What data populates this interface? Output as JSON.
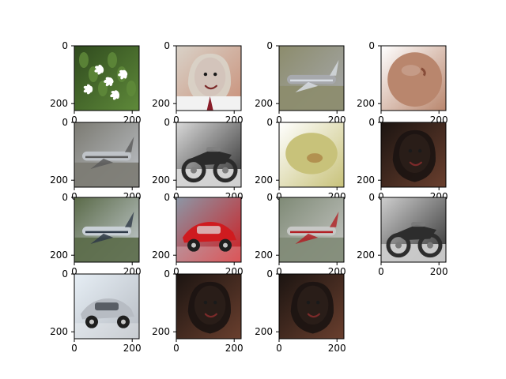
{
  "figure": {
    "background": "#ffffff",
    "axis_color": "#000000"
  },
  "chart_data": {
    "type": "image-grid",
    "rows": 4,
    "cols": 4,
    "axis": {
      "xticks": [
        0,
        200
      ],
      "yticks": [
        0,
        200
      ],
      "xlim": [
        0,
        224
      ],
      "ylim": [
        224,
        0
      ]
    },
    "panels": [
      {
        "subject": "white flowers and green leaves",
        "palette": {
          "bg": "#2f4a1e",
          "mid": "#5f8a3a",
          "accent": "#ffffff"
        }
      },
      {
        "subject": "man in white shirt and dark red tie",
        "palette": {
          "bg": "#d9d2c8",
          "mid": "#c98f78",
          "accent": "#8a1e2a"
        }
      },
      {
        "subject": "airliner on runway",
        "palette": {
          "bg": "#8c8c6c",
          "mid": "#a7a9ad",
          "accent": "#d8dde4"
        }
      },
      {
        "subject": "apple close-up",
        "palette": {
          "bg": "#ffffff",
          "mid": "#b9866d",
          "accent": "#7a3d2b"
        }
      },
      {
        "subject": "aircraft close-up on tarmac",
        "palette": {
          "bg": "#7b7a72",
          "mid": "#bfc3c8",
          "accent": "#5a5a5a"
        }
      },
      {
        "subject": "black motorcycle",
        "palette": {
          "bg": "#d9d9d9",
          "mid": "#2b2b2b",
          "accent": "#7f7f7f"
        }
      },
      {
        "subject": "melon slice close-up",
        "palette": {
          "bg": "#ffffff",
          "mid": "#c8c27a",
          "accent": "#a06a2e"
        }
      },
      {
        "subject": "smiling woman with curly hair",
        "palette": {
          "bg": "#1b1411",
          "mid": "#6a3f2e",
          "accent": "#c78d6a"
        }
      },
      {
        "subject": "airliner taking off",
        "palette": {
          "bg": "#5a6a48",
          "mid": "#c9d0d6",
          "accent": "#2f3a48"
        }
      },
      {
        "subject": "red car",
        "palette": {
          "bg": "#8c97a6",
          "mid": "#cf1b1f",
          "accent": "#dcdcdc"
        }
      },
      {
        "subject": "airliner on runway",
        "palette": {
          "bg": "#7f8a76",
          "mid": "#c7c8c6",
          "accent": "#b11f24"
        }
      },
      {
        "subject": "dark motorcycle",
        "palette": {
          "bg": "#cfcfcf",
          "mid": "#2d2d2d",
          "accent": "#7a7a7a"
        }
      },
      {
        "subject": "silver car",
        "palette": {
          "bg": "#e6eef5",
          "mid": "#b7bcc3",
          "accent": "#3a3f45"
        }
      },
      {
        "subject": "woman with curly hair",
        "palette": {
          "bg": "#1b1411",
          "mid": "#6a3f2e",
          "accent": "#c78d6a"
        }
      },
      {
        "subject": "woman with curly hair",
        "palette": {
          "bg": "#1b1411",
          "mid": "#6a3f2e",
          "accent": "#c78d6a"
        }
      }
    ]
  }
}
